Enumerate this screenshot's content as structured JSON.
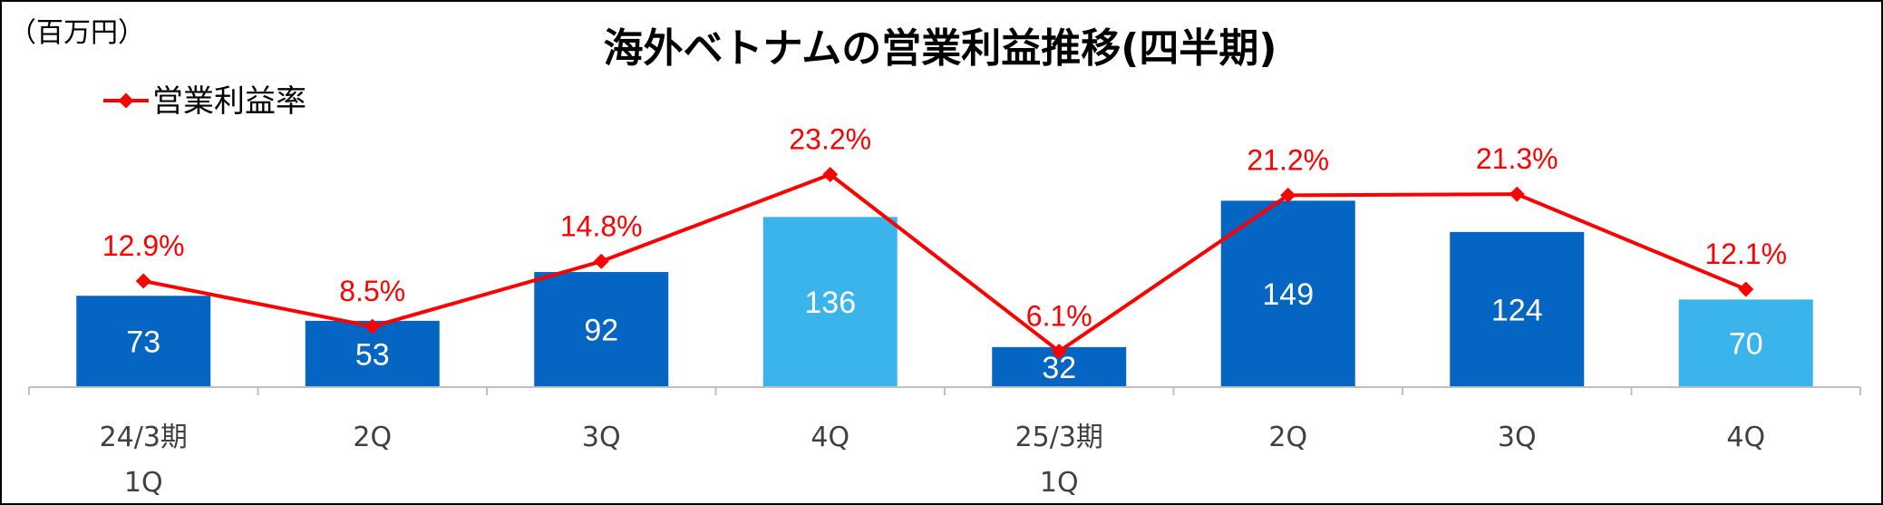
{
  "unit_label": "（百万円）",
  "title": "海外ベトナムの営業利益推移(四半期)",
  "legend": {
    "line_label": "営業利益率"
  },
  "colors": {
    "bar_dark": "#0565c2",
    "bar_light": "#3bb4ec",
    "line": "#ff0000",
    "axis": "#bfbfbf",
    "tick_text": "#404040"
  },
  "chart_data": {
    "type": "bar",
    "title": "海外ベトナムの営業利益推移(四半期)",
    "categories": [
      [
        "24/3期",
        "1Q"
      ],
      [
        "2Q"
      ],
      [
        "3Q"
      ],
      [
        "4Q"
      ],
      [
        "25/3期",
        "1Q"
      ],
      [
        "2Q"
      ],
      [
        "3Q"
      ],
      [
        "4Q"
      ]
    ],
    "series": [
      {
        "kind": "bar",
        "values": [
          73,
          53,
          92,
          136,
          32,
          149,
          124,
          70
        ],
        "value_labels": [
          "73",
          "53",
          "92",
          "136",
          "32",
          "149",
          "124",
          "70"
        ],
        "color_keys": [
          "bar_dark",
          "bar_dark",
          "bar_dark",
          "bar_light",
          "bar_dark",
          "bar_dark",
          "bar_dark",
          "bar_light"
        ]
      },
      {
        "name": "営業利益率",
        "kind": "line",
        "values": [
          12.9,
          8.5,
          14.8,
          23.2,
          6.1,
          21.2,
          21.3,
          12.1
        ],
        "value_labels": [
          "12.9%",
          "8.5%",
          "14.8%",
          "23.2%",
          "6.1%",
          "21.2%",
          "21.3%",
          "12.1%"
        ]
      }
    ],
    "ylim_bars": [
      0,
      240
    ],
    "ylim_rate": [
      0,
      25
    ],
    "legend_position": "top-left",
    "grid": false
  }
}
